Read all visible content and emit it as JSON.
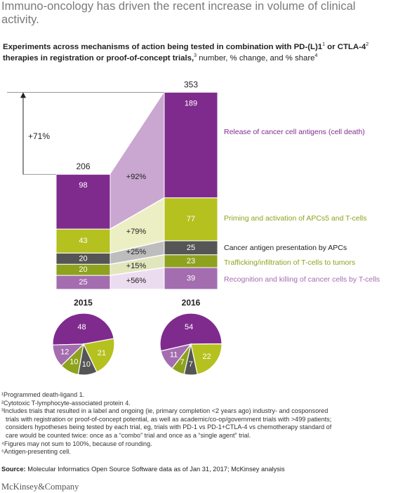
{
  "headline": "Immuno-oncology has driven the recent increase in volume of clinical activity.",
  "subtitle": {
    "bold_part1": "Experiments across mechanisms of action being tested in combination with PD-(L)1",
    "sup1": "1",
    "bold_part2": " or CTLA-4",
    "sup2": "2",
    "bold_part3": " therapies in registration or proof-of-concept trials,",
    "sup3": "3",
    "regular_part": " number, % change, and % share",
    "sup4": "4"
  },
  "chart_data": {
    "type": "bar",
    "stacked": true,
    "categories": [
      "2015",
      "2016"
    ],
    "totals": [
      206,
      353
    ],
    "total_change": "+71%",
    "series": [
      {
        "name": "Recognition and killing of cancer cells by T-cells",
        "values": [
          25,
          39
        ],
        "change": "+56%",
        "share": [
          12,
          11
        ],
        "color": "#a46db0",
        "connector_color": "#ecdcef",
        "label_color": "#a46db0"
      },
      {
        "name": "Trafficking/infiltration of T-cells to tumors",
        "values": [
          20,
          23
        ],
        "change": "+15%",
        "share": [
          10,
          7
        ],
        "color": "#8ea21d",
        "connector_color": "#e1e6bd",
        "label_color": "#8ea21d"
      },
      {
        "name": "Cancer antigen presentation by APCs",
        "values": [
          20,
          25
        ],
        "change": "+25%",
        "share": [
          10,
          7
        ],
        "color": "#555555",
        "connector_color": "#bdbdbd",
        "label_color": "#222222"
      },
      {
        "name": "Priming and activation of APCs5 and T-cells",
        "values": [
          43,
          77
        ],
        "change": "+79%",
        "share": [
          21,
          22
        ],
        "color": "#b5c11f",
        "connector_color": "#ecefc3",
        "label_color": "#8ea21d"
      },
      {
        "name": "Release of cancer cell antigens (cell death)",
        "values": [
          98,
          189
        ],
        "change": "+92%",
        "share": [
          48,
          54
        ],
        "color": "#7f2b8d",
        "connector_color": "#c9a7d0",
        "label_color": "#7f2b8d"
      }
    ]
  },
  "footnotes": [
    "¹Programmed death-ligand 1.",
    "²Cytotoxic T-lymphocyte-associated protein 4.",
    "³Includes trials that resulted in a label and ongoing (ie, primary completion <2 years ago) industry- and cosponsored",
    "trials with registration or proof-of-concept potential, as well as academic/co-op/government trials with >499 patients;",
    "considers hypotheses being tested by each trial, eg, trials with PD-1 vs PD-1+CTLA-4 vs chemotherapy standard of",
    "care would be counted twice: once as a “combo” trial and once as a “single agent” trial.",
    "⁴Figures may not sum to 100%, because of rounding.",
    "⁵Antigen-presenting cell."
  ],
  "source": {
    "label": "Source:",
    "text": " Molecular Informatics Open Source Software data as of Jan 31, 2017; McKinsey analysis"
  },
  "brand": "McKinsey&Company"
}
